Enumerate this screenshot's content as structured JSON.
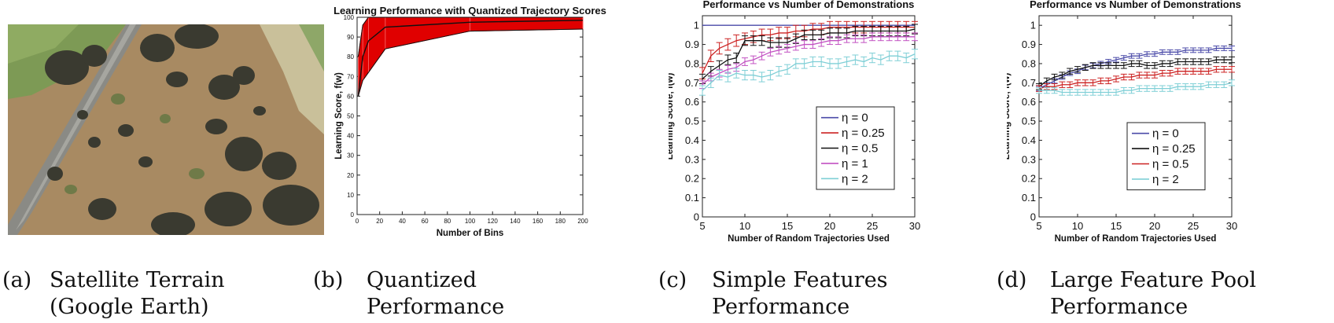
{
  "panels": [
    {
      "letter": "(a)",
      "caption_lines": [
        "Satellite Terrain",
        "(Google Earth)"
      ]
    },
    {
      "letter": "(b)",
      "caption_lines": [
        "Quantized",
        "Performance"
      ]
    },
    {
      "letter": "(c)",
      "caption_lines": [
        "Simple Features",
        "Performance"
      ]
    },
    {
      "letter": "(d)",
      "caption_lines": [
        "Large Feature Pool",
        "Performance"
      ]
    }
  ],
  "colors": {
    "red": "#e00000",
    "blue": "#4a4aa8",
    "black": "#111111",
    "magenta": "#c251c2",
    "cyan": "#7fcfd6",
    "dark_red": "#cc2222"
  },
  "chart_data": [
    {
      "id": "b",
      "type": "area",
      "title": "Learning Performance with Quantized Trajectory Scores",
      "xlabel": "Number of Bins",
      "ylabel": "Learning Score, f(w)",
      "xlim": [
        0,
        200
      ],
      "ylim": [
        0,
        100
      ],
      "xticks": [
        0,
        20,
        40,
        60,
        80,
        100,
        120,
        140,
        160,
        180,
        200
      ],
      "yticks": [
        0,
        10,
        20,
        30,
        40,
        50,
        60,
        70,
        80,
        90,
        100
      ],
      "x": [
        1,
        5,
        10,
        25,
        100,
        200
      ],
      "upper": [
        80,
        96,
        100,
        100,
        100,
        100
      ],
      "mean": [
        60,
        80,
        88,
        95,
        97.5,
        98.5
      ],
      "lower": [
        60,
        68,
        72,
        84,
        93,
        94
      ]
    },
    {
      "id": "c",
      "type": "line",
      "title": "Performance vs Number of Demonstrations",
      "xlabel": "Number of Random Trajectories Used",
      "ylabel": "Learning Score, f(w)",
      "xlim": [
        5,
        30
      ],
      "ylim": [
        0,
        1.05
      ],
      "xticks": [
        5,
        10,
        15,
        20,
        25,
        30
      ],
      "yticks": [
        0,
        0.1,
        0.2,
        0.3,
        0.4,
        0.5,
        0.6,
        0.7,
        0.8,
        0.9,
        1
      ],
      "ytick_labels": [
        "0",
        "0.1",
        "0.2",
        "0.3",
        "0.4",
        "0.5",
        "0.6",
        "0.7",
        "0.8",
        "0.9",
        "1"
      ],
      "legend": [
        "η = 0",
        "η = 0.25",
        "η = 0.5",
        "η = 1",
        "η = 2"
      ],
      "x": [
        5,
        6,
        7,
        8,
        9,
        10,
        11,
        12,
        13,
        14,
        15,
        16,
        17,
        18,
        19,
        20,
        21,
        22,
        23,
        24,
        25,
        26,
        27,
        28,
        29,
        30
      ],
      "series": [
        {
          "name": "η = 0",
          "values": [
            1,
            1,
            1,
            1,
            1,
            1,
            1,
            1,
            1,
            1,
            1,
            1,
            1,
            1,
            1,
            1,
            1,
            1,
            1,
            1,
            1,
            1,
            1,
            1,
            1,
            1
          ],
          "err": 0
        },
        {
          "name": "η = 0.25",
          "values": [
            0.75,
            0.84,
            0.88,
            0.9,
            0.92,
            0.93,
            0.94,
            0.95,
            0.95,
            0.96,
            0.96,
            0.97,
            0.97,
            0.98,
            0.98,
            0.99,
            0.99,
            0.99,
            0.99,
            0.99,
            0.99,
            0.99,
            0.99,
            0.99,
            0.99,
            0.99
          ],
          "err": 0.03
        },
        {
          "name": "η = 0.5",
          "values": [
            0.72,
            0.76,
            0.79,
            0.82,
            0.83,
            0.92,
            0.92,
            0.92,
            0.91,
            0.91,
            0.91,
            0.93,
            0.95,
            0.95,
            0.95,
            0.96,
            0.96,
            0.96,
            0.97,
            0.97,
            0.97,
            0.97,
            0.97,
            0.97,
            0.97,
            0.98
          ],
          "err": 0.025
        },
        {
          "name": "η = 1",
          "values": [
            0.69,
            0.73,
            0.75,
            0.77,
            0.78,
            0.81,
            0.82,
            0.84,
            0.86,
            0.87,
            0.88,
            0.89,
            0.9,
            0.9,
            0.91,
            0.92,
            0.92,
            0.93,
            0.93,
            0.93,
            0.94,
            0.94,
            0.94,
            0.94,
            0.94,
            0.94
          ],
          "err": 0.02
        },
        {
          "name": "η = 2",
          "values": [
            0.66,
            0.7,
            0.74,
            0.73,
            0.75,
            0.74,
            0.74,
            0.73,
            0.74,
            0.76,
            0.77,
            0.8,
            0.8,
            0.81,
            0.81,
            0.8,
            0.8,
            0.81,
            0.82,
            0.81,
            0.83,
            0.82,
            0.84,
            0.84,
            0.83,
            0.85
          ],
          "err": 0.025
        }
      ]
    },
    {
      "id": "d",
      "type": "line",
      "title": "Performance vs Number of Demonstrations",
      "xlabel": "Number of Random Trajectories Used",
      "ylabel": "Learning Score, f(w)",
      "xlim": [
        5,
        30
      ],
      "ylim": [
        0,
        1.05
      ],
      "xticks": [
        5,
        10,
        15,
        20,
        25,
        30
      ],
      "yticks": [
        0,
        0.1,
        0.2,
        0.3,
        0.4,
        0.5,
        0.6,
        0.7,
        0.8,
        0.9,
        1
      ],
      "ytick_labels": [
        "0",
        "0.1",
        "0.2",
        "0.3",
        "0.4",
        "0.5",
        "0.6",
        "0.7",
        "0.8",
        "0.9",
        "1"
      ],
      "legend": [
        "η = 0",
        "η = 0.25",
        "η = 0.5",
        "η = 2"
      ],
      "x": [
        5,
        6,
        7,
        8,
        9,
        10,
        11,
        12,
        13,
        14,
        15,
        16,
        17,
        18,
        19,
        20,
        21,
        22,
        23,
        24,
        25,
        26,
        27,
        28,
        29,
        30
      ],
      "series": [
        {
          "name": "η = 0",
          "values": [
            0.67,
            0.69,
            0.71,
            0.73,
            0.75,
            0.76,
            0.78,
            0.79,
            0.8,
            0.81,
            0.82,
            0.83,
            0.84,
            0.84,
            0.85,
            0.85,
            0.86,
            0.86,
            0.86,
            0.87,
            0.87,
            0.87,
            0.87,
            0.88,
            0.88,
            0.88
          ],
          "err": 0.012
        },
        {
          "name": "η = 0.25",
          "values": [
            0.68,
            0.71,
            0.73,
            0.74,
            0.76,
            0.77,
            0.78,
            0.79,
            0.79,
            0.79,
            0.79,
            0.79,
            0.8,
            0.8,
            0.79,
            0.79,
            0.8,
            0.8,
            0.81,
            0.81,
            0.81,
            0.81,
            0.81,
            0.82,
            0.82,
            0.82
          ],
          "err": 0.015
        },
        {
          "name": "η = 0.5",
          "values": [
            0.67,
            0.68,
            0.68,
            0.69,
            0.69,
            0.7,
            0.7,
            0.7,
            0.71,
            0.71,
            0.72,
            0.73,
            0.73,
            0.74,
            0.74,
            0.74,
            0.75,
            0.75,
            0.76,
            0.76,
            0.76,
            0.76,
            0.76,
            0.77,
            0.77,
            0.77
          ],
          "err": 0.015
        },
        {
          "name": "η = 2",
          "values": [
            0.66,
            0.66,
            0.66,
            0.65,
            0.65,
            0.65,
            0.65,
            0.65,
            0.65,
            0.65,
            0.65,
            0.66,
            0.66,
            0.67,
            0.67,
            0.67,
            0.67,
            0.67,
            0.68,
            0.68,
            0.68,
            0.68,
            0.69,
            0.69,
            0.69,
            0.7
          ],
          "err": 0.015
        }
      ]
    }
  ]
}
